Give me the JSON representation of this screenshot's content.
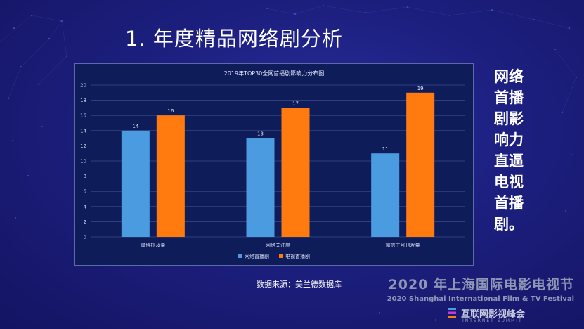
{
  "slide": {
    "title": "1. 年度精品网络剧分析",
    "side_text": [
      "网络",
      "首播",
      "剧影",
      "响力",
      "直逼",
      "电视",
      "首播",
      "剧。"
    ],
    "source": "数据来源：美兰德数据库",
    "festival_cn": "2020 年上海国际电影电视节",
    "festival_en": "2020 Shanghai International Film & TV Festival",
    "summit_cn": "互联网影视峰会",
    "summit_en": "INTERNET SUMMIT"
  },
  "colors": {
    "series_online": "#4a9be0",
    "series_tv": "#ff7a0f",
    "background": "#1c1f7e",
    "chart_bg": "#0f1c5a"
  },
  "chart_data": {
    "type": "bar",
    "title": "2019年TOP30全网首播剧影响力分布图",
    "categories": [
      "微博提及量",
      "网络关注度",
      "微信工号刊发量"
    ],
    "series": [
      {
        "name": "网络首播剧",
        "values": [
          14,
          13,
          11
        ]
      },
      {
        "name": "电视首播剧",
        "values": [
          16,
          17,
          19
        ]
      }
    ],
    "ylim": [
      0,
      20
    ],
    "yticks": [
      0,
      2,
      4,
      6,
      8,
      10,
      12,
      14,
      16,
      18,
      20
    ],
    "grid": true,
    "legend_position": "bottom"
  }
}
